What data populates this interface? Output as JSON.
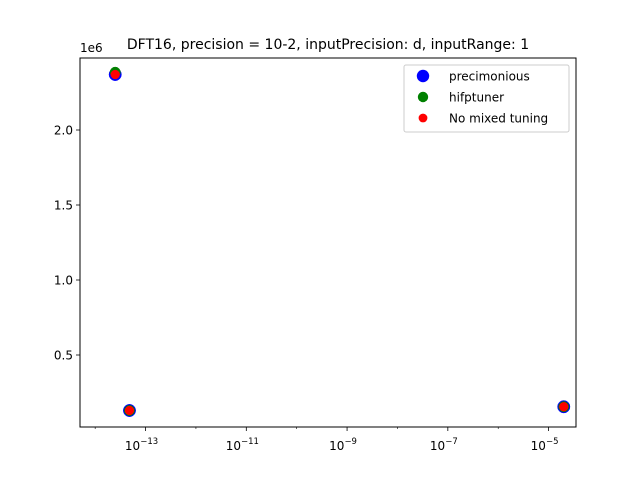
{
  "chart_data": {
    "type": "scatter",
    "title": "DFT16, precision = 10-2, inputPrecision: d, inputRange: 1",
    "xlabel": "",
    "ylabel": "",
    "x_scale": "log",
    "y_offset_label": "1e6",
    "xlim": [
      5e-15,
      3.5e-05
    ],
    "ylim": [
      0.02,
      2.48
    ],
    "x_ticks": [
      {
        "value": 1e-13,
        "base": "10",
        "exp": "−13"
      },
      {
        "value": 1e-11,
        "base": "10",
        "exp": "−11"
      },
      {
        "value": 1e-09,
        "base": "10",
        "exp": "−9"
      },
      {
        "value": 1e-07,
        "base": "10",
        "exp": "−7"
      },
      {
        "value": 1e-05,
        "base": "10",
        "exp": "−5"
      }
    ],
    "y_ticks": [
      {
        "value": 0.5,
        "label": "0.5"
      },
      {
        "value": 1.0,
        "label": "1.0"
      },
      {
        "value": 1.5,
        "label": "1.5"
      },
      {
        "value": 2.0,
        "label": "2.0"
      }
    ],
    "grid": false,
    "legend_position": "top-right",
    "series": [
      {
        "name": "precimonious",
        "color": "#0000ff",
        "marker_size": "large",
        "points": [
          {
            "x": 2.5e-14,
            "y": 2.37
          },
          {
            "x": 4.8e-14,
            "y": 0.13
          },
          {
            "x": 2e-05,
            "y": 0.155
          }
        ]
      },
      {
        "name": "hifptuner",
        "color": "#008000",
        "marker_size": "medium",
        "points": [
          {
            "x": 2.5e-14,
            "y": 2.385
          },
          {
            "x": 4.8e-14,
            "y": 0.13
          },
          {
            "x": 2e-05,
            "y": 0.155
          }
        ]
      },
      {
        "name": "No mixed tuning",
        "color": "#ff0000",
        "marker_size": "small",
        "points": [
          {
            "x": 2.5e-14,
            "y": 2.37
          },
          {
            "x": 4.8e-14,
            "y": 0.13
          },
          {
            "x": 2e-05,
            "y": 0.155
          }
        ]
      }
    ]
  }
}
